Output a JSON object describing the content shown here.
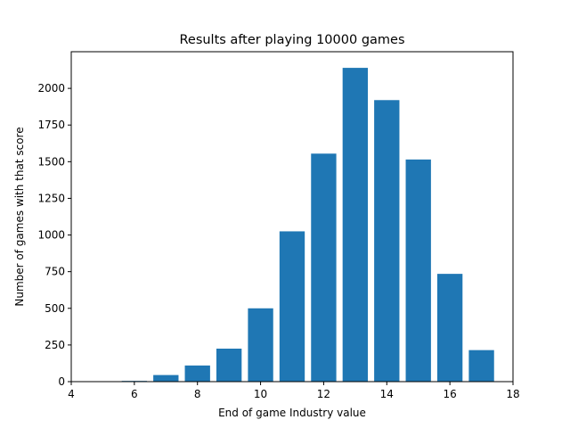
{
  "chart_data": {
    "type": "bar",
    "title": "Results after playing 10000 games",
    "xlabel": "End of game Industry value",
    "ylabel": "Number of games with that score",
    "x": [
      6,
      7,
      8,
      9,
      10,
      11,
      12,
      13,
      14,
      15,
      16,
      17
    ],
    "values": [
      5,
      45,
      110,
      225,
      500,
      1025,
      1555,
      2140,
      1920,
      1515,
      735,
      215
    ],
    "xlim": [
      4,
      18
    ],
    "ylim": [
      0,
      2250
    ],
    "xticks": [
      4,
      6,
      8,
      10,
      12,
      14,
      16,
      18
    ],
    "yticks": [
      0,
      250,
      500,
      750,
      1000,
      1250,
      1500,
      1750,
      2000
    ],
    "bar_color": "#1f77b4",
    "grid": false,
    "legend": "none"
  }
}
